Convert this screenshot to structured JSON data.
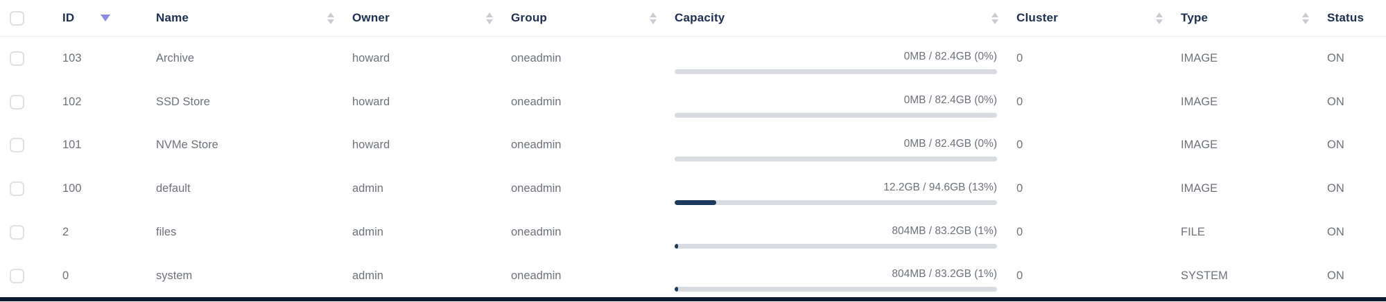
{
  "table": {
    "columns": [
      {
        "key": "id",
        "label": "ID",
        "sort": "desc"
      },
      {
        "key": "name",
        "label": "Name",
        "sort": "none"
      },
      {
        "key": "owner",
        "label": "Owner",
        "sort": "none"
      },
      {
        "key": "group",
        "label": "Group",
        "sort": "none"
      },
      {
        "key": "capacity",
        "label": "Capacity",
        "sort": "none"
      },
      {
        "key": "cluster",
        "label": "Cluster",
        "sort": "none"
      },
      {
        "key": "type",
        "label": "Type",
        "sort": "none"
      },
      {
        "key": "status",
        "label": "Status",
        "sort": "none"
      }
    ],
    "select_all_checked": false,
    "rows": [
      {
        "checked": false,
        "id": "103",
        "name": "Archive",
        "owner": "howard",
        "group": "oneadmin",
        "capacity_label": "0MB / 82.4GB (0%)",
        "capacity_percent": 0,
        "cluster": "0",
        "type": "IMAGE",
        "status": "ON"
      },
      {
        "checked": false,
        "id": "102",
        "name": "SSD Store",
        "owner": "howard",
        "group": "oneadmin",
        "capacity_label": "0MB / 82.4GB (0%)",
        "capacity_percent": 0,
        "cluster": "0",
        "type": "IMAGE",
        "status": "ON"
      },
      {
        "checked": false,
        "id": "101",
        "name": "NVMe Store",
        "owner": "howard",
        "group": "oneadmin",
        "capacity_label": "0MB / 82.4GB (0%)",
        "capacity_percent": 0,
        "cluster": "0",
        "type": "IMAGE",
        "status": "ON"
      },
      {
        "checked": false,
        "id": "100",
        "name": "default",
        "owner": "admin",
        "group": "oneadmin",
        "capacity_label": "12.2GB / 94.6GB (13%)",
        "capacity_percent": 13,
        "cluster": "0",
        "type": "IMAGE",
        "status": "ON"
      },
      {
        "checked": false,
        "id": "2",
        "name": "files",
        "owner": "admin",
        "group": "oneadmin",
        "capacity_label": "804MB / 83.2GB (1%)",
        "capacity_percent": 1,
        "cluster": "0",
        "type": "FILE",
        "status": "ON"
      },
      {
        "checked": false,
        "id": "0",
        "name": "system",
        "owner": "admin",
        "group": "oneadmin",
        "capacity_label": "804MB / 83.2GB (1%)",
        "capacity_percent": 1,
        "cluster": "0",
        "type": "SYSTEM",
        "status": "ON"
      }
    ]
  },
  "colors": {
    "header_text": "#1c2e52",
    "body_text": "#6d727a",
    "sort_neutral": "#c8ccd3",
    "sort_active": "#8a8be0",
    "capacity_track": "#d8dbe0",
    "capacity_fill": "#1c3a5e",
    "header_border": "#ebedf0",
    "checkbox_border": "#e0e1e6",
    "bottom_bar": "#0d1a30",
    "background": "#ffffff"
  }
}
